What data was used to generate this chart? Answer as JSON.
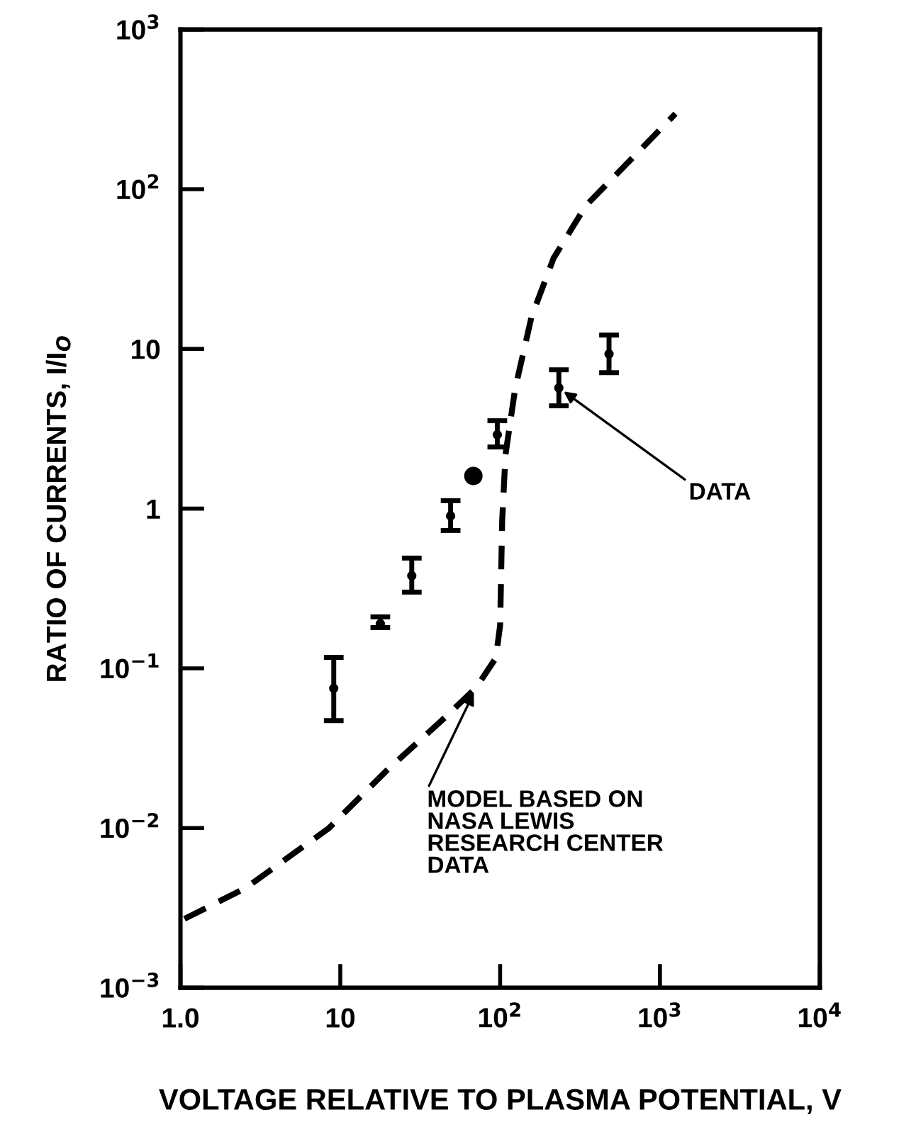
{
  "chart_data": {
    "type": "scatter",
    "xlabel": "VOLTAGE RELATIVE TO PLASMA POTENTIAL, V",
    "ylabel": "RATIO OF CURRENTS, I/I$_{O}$",
    "log": "xy",
    "xlim": [
      1,
      10000
    ],
    "ylim": [
      0.001,
      1000
    ],
    "xticks": [
      {
        "value": 1,
        "label": "1.0"
      },
      10,
      {
        "value": 100,
        "label": "10$^{2}$"
      },
      {
        "value": 1000,
        "label": "10$^{3}$"
      },
      {
        "value": 10000,
        "label": "10$^{4}$"
      }
    ],
    "yticks": [
      {
        "value": 0.001,
        "label": "10$^{−3}$"
      },
      {
        "value": 0.01,
        "label": "10$^{−2}$"
      },
      {
        "value": 0.1,
        "label": "10$^{−1}$"
      },
      1,
      10,
      {
        "value": 100,
        "label": "10$^{2}$"
      },
      {
        "value": 1000,
        "label": "10$^{3}$"
      }
    ],
    "grid": false,
    "series": [
      {
        "color": "#000000",
        "marker": "circle",
        "x": [
          9.1,
          17.8,
          28,
          49,
          96,
          233,
          480
        ],
        "values": [
          0.075,
          0.19,
          0.38,
          0.9,
          2.9,
          5.7,
          9.3
        ],
        "errors": [
          [
            0.047,
            0.117
          ],
          [
            0.18,
            0.21
          ],
          [
            0.3,
            0.49
          ],
          [
            0.73,
            1.12
          ],
          [
            2.43,
            3.55
          ],
          [
            4.4,
            7.4
          ],
          [
            7.1,
            12.2
          ]
        ]
      },
      {
        "color": "#000000",
        "marker": "circle",
        "x": [
          68
        ],
        "values": [
          1.6
        ]
      },
      {
        "type": "line",
        "color": "#000000",
        "line_style": "dashed",
        "x": [
          1.06,
          2.55,
          8.5,
          19.6,
          45,
          71,
          94,
          100,
          103,
          108,
          124,
          157,
          216,
          344,
          598,
          1250
        ],
        "values": [
          0.0027,
          0.0042,
          0.01,
          0.023,
          0.049,
          0.076,
          0.116,
          0.186,
          0.84,
          2.17,
          5.6,
          15.8,
          37,
          79,
          139,
          297
        ]
      }
    ],
    "annotations": [
      {
        "text": "DATA",
        "x": 233,
        "y": 5.7
      },
      {
        "text": "MODEL BASED ON\nNASA LEWIS\nRESEARCH CENTER\nDATA",
        "x": 71,
        "y": 0.076
      }
    ]
  }
}
